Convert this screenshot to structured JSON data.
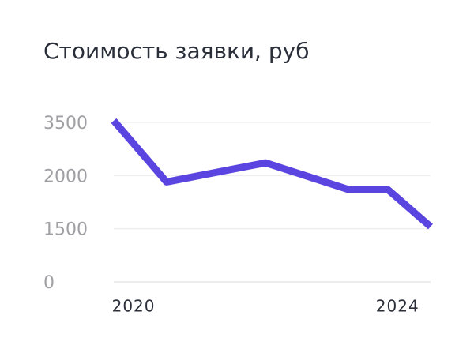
{
  "chart_data": {
    "type": "line",
    "title": "Стоимость заявки, руб",
    "x": [
      2019.7,
      2020.5,
      2022,
      2023.25,
      2023.85,
      2024.5
    ],
    "series": [
      {
        "name": "Стоимость",
        "color": "#5b45e0",
        "values": [
          3550,
          1940,
          2360,
          1870,
          1870,
          1520
        ]
      }
    ],
    "xlim": [
      2019.7,
      2024.5
    ],
    "xticks": [
      2020,
      2024
    ],
    "ylim": [
      0,
      3500
    ],
    "yticks": [
      0,
      1500,
      2000,
      3500
    ],
    "grid": true
  }
}
